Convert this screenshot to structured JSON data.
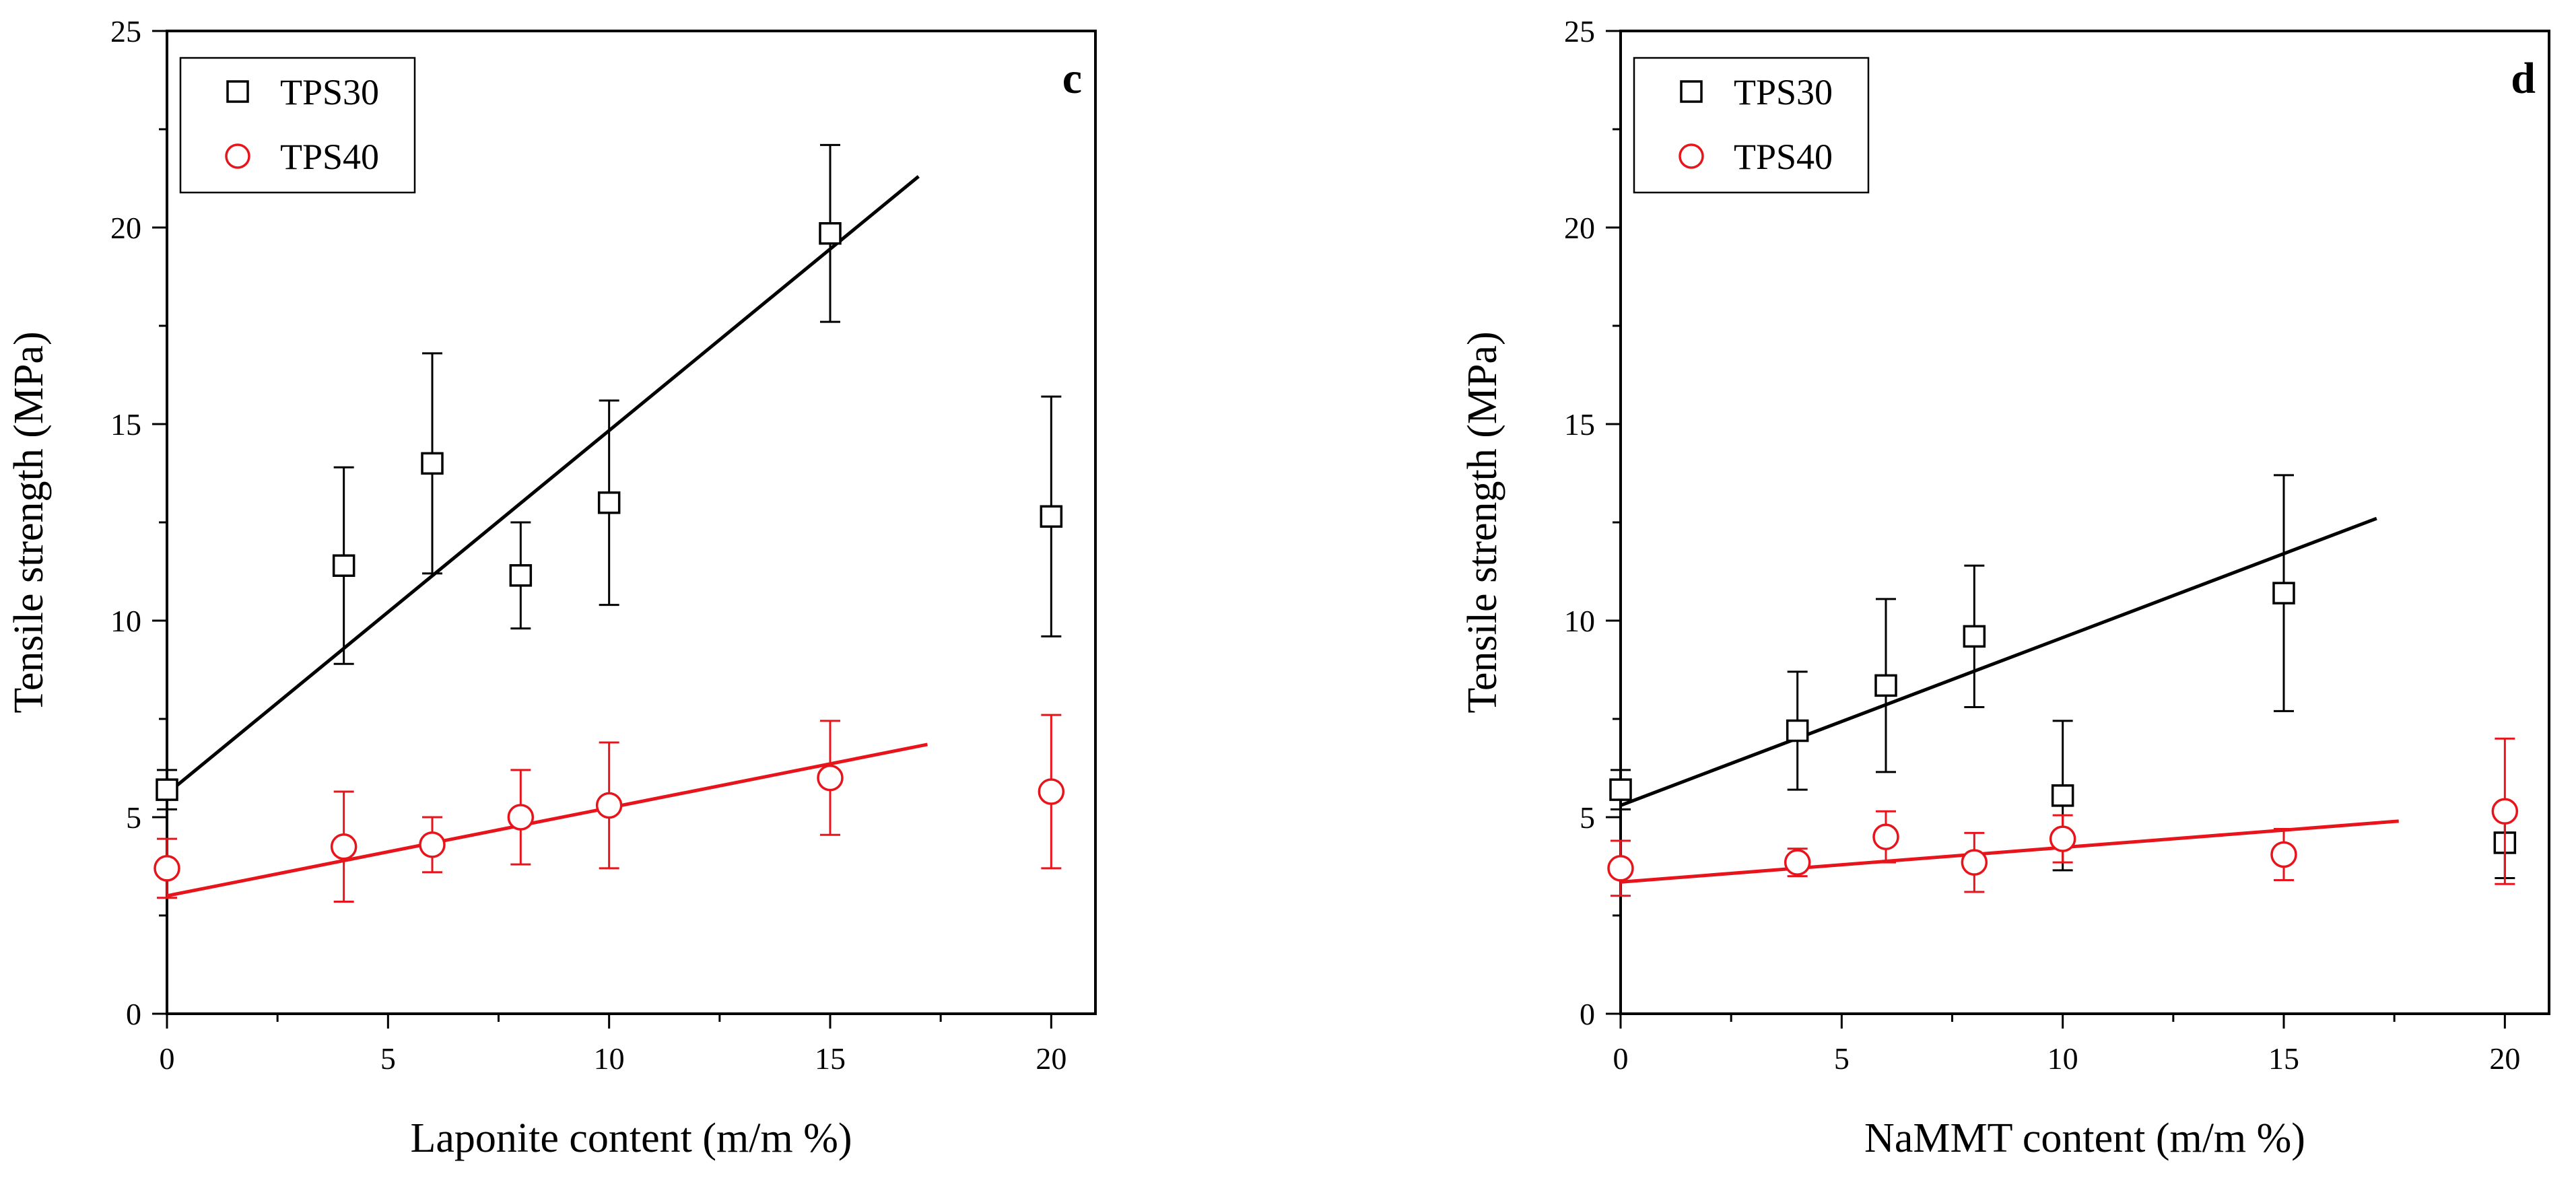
{
  "chart_data": [
    {
      "type": "scatter",
      "panel": "c",
      "xlabel": "Laponite content (m/m %)",
      "ylabel": "Tensile strength (MPa)",
      "xlim": [
        0,
        21
      ],
      "ylim": [
        0,
        25
      ],
      "xticks": [
        0,
        5,
        10,
        15,
        20
      ],
      "yticks": [
        0,
        5,
        10,
        15,
        20,
        25
      ],
      "legend_position": "top-left",
      "series": [
        {
          "name": "TPS30",
          "marker": "square",
          "color": "#000000",
          "x": [
            0,
            4,
            6,
            8,
            10,
            15,
            20
          ],
          "y": [
            5.7,
            11.4,
            14.0,
            11.15,
            13.0,
            19.85,
            12.65
          ],
          "err": [
            0.5,
            2.5,
            2.8,
            1.35,
            2.6,
            2.25,
            3.05
          ],
          "fit": {
            "x": [
              0,
              17
            ],
            "y": [
              5.6,
              21.3
            ]
          }
        },
        {
          "name": "TPS40",
          "marker": "circle",
          "color": "#e8141b",
          "x": [
            0,
            4,
            6,
            8,
            10,
            15,
            20
          ],
          "y": [
            3.7,
            4.25,
            4.3,
            5.0,
            5.3,
            6.0,
            5.65
          ],
          "err": [
            0.75,
            1.4,
            0.7,
            1.2,
            1.6,
            1.45,
            1.95
          ],
          "fit": {
            "x": [
              0,
              17.2
            ],
            "y": [
              3.0,
              6.85
            ]
          }
        }
      ]
    },
    {
      "type": "scatter",
      "panel": "d",
      "xlabel": "NaMMT content (m/m %)",
      "ylabel": "Tensile strength (MPa)",
      "xlim": [
        0,
        21
      ],
      "ylim": [
        0,
        25
      ],
      "xticks": [
        0,
        5,
        10,
        15,
        20
      ],
      "yticks": [
        0,
        5,
        10,
        15,
        20,
        25
      ],
      "legend_position": "top-left",
      "series": [
        {
          "name": "TPS30",
          "marker": "square",
          "color": "#000000",
          "x": [
            0,
            4,
            6,
            8,
            10,
            15,
            20
          ],
          "y": [
            5.7,
            7.2,
            8.35,
            9.6,
            5.55,
            10.7,
            4.35
          ],
          "err": [
            0.5,
            1.5,
            2.2,
            1.8,
            1.9,
            3.0,
            0.9
          ],
          "fit": {
            "x": [
              0,
              17.1
            ],
            "y": [
              5.3,
              12.6
            ]
          }
        },
        {
          "name": "TPS40",
          "marker": "circle",
          "color": "#e8141b",
          "x": [
            0,
            4,
            6,
            8,
            10,
            15,
            20
          ],
          "y": [
            3.7,
            3.85,
            4.5,
            3.85,
            4.45,
            4.05,
            5.15
          ],
          "err": [
            0.7,
            0.35,
            0.65,
            0.75,
            0.6,
            0.65,
            1.85
          ],
          "fit": {
            "x": [
              0,
              17.6
            ],
            "y": [
              3.35,
              4.9
            ]
          }
        }
      ]
    }
  ]
}
